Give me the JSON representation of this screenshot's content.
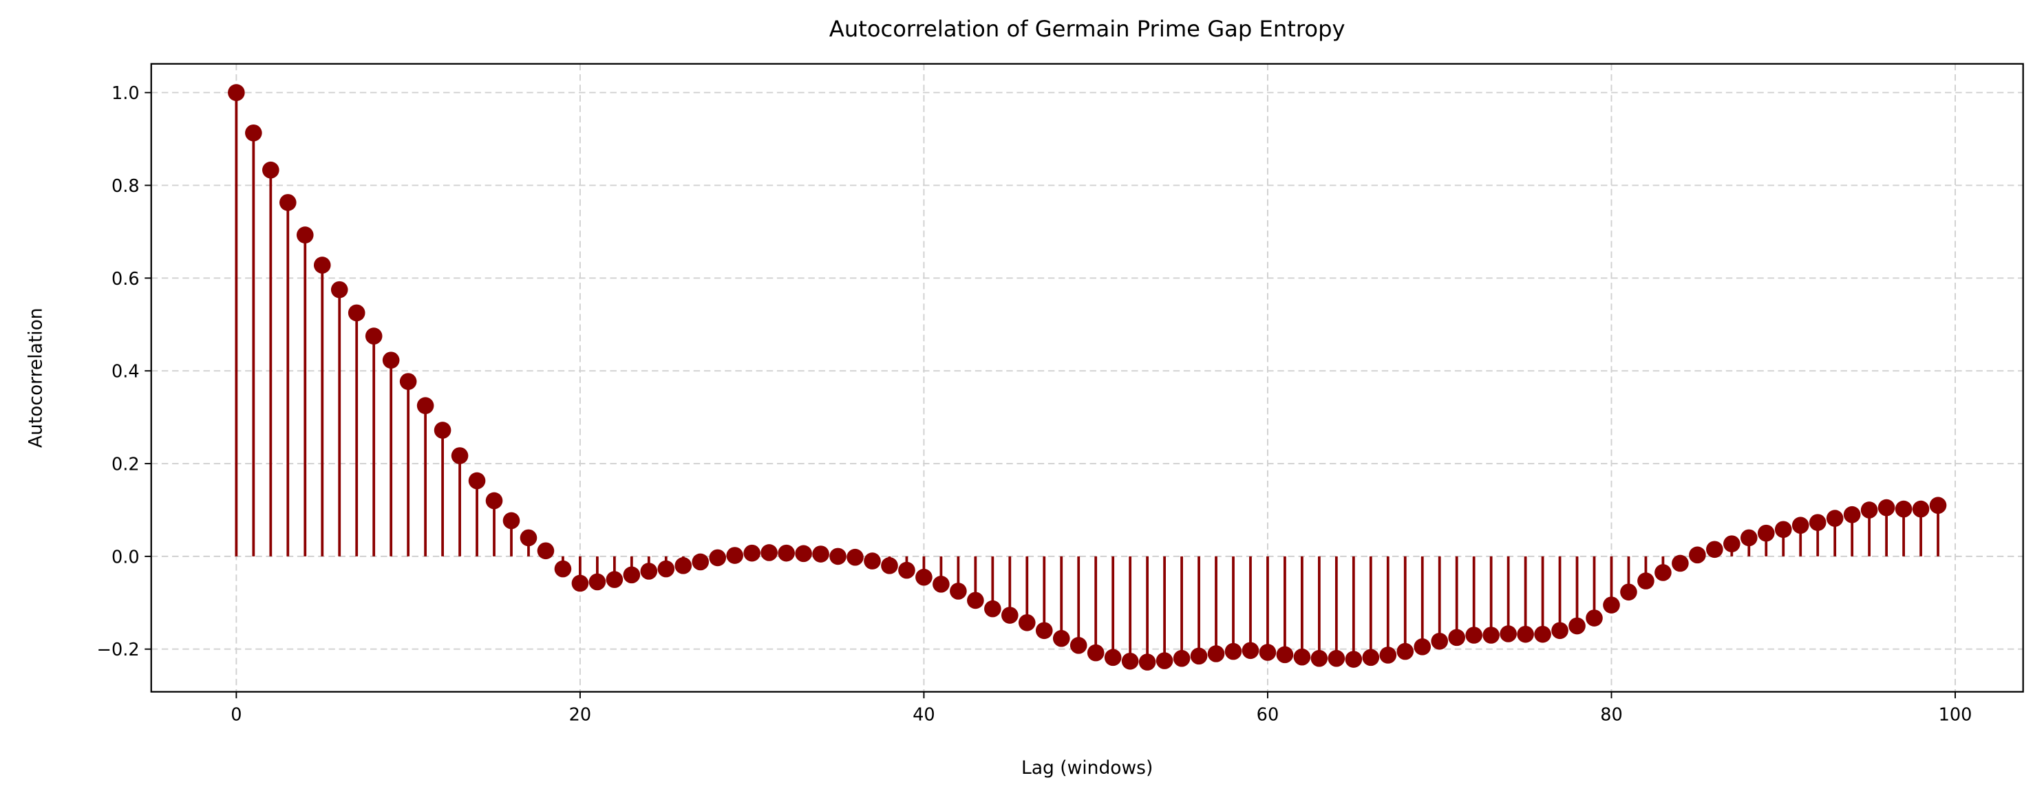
{
  "chart_data": {
    "type": "stem",
    "title": "Autocorrelation of Germain Prime Gap Entropy",
    "xlabel": "Lag (windows)",
    "ylabel": "Autocorrelation",
    "color": "#8b0000",
    "grid": true,
    "x": [
      0,
      1,
      2,
      3,
      4,
      5,
      6,
      7,
      8,
      9,
      10,
      11,
      12,
      13,
      14,
      15,
      16,
      17,
      18,
      19,
      20,
      21,
      22,
      23,
      24,
      25,
      26,
      27,
      28,
      29,
      30,
      31,
      32,
      33,
      34,
      35,
      36,
      37,
      38,
      39,
      40,
      41,
      42,
      43,
      44,
      45,
      46,
      47,
      48,
      49,
      50,
      51,
      52,
      53,
      54,
      55,
      56,
      57,
      58,
      59,
      60,
      61,
      62,
      63,
      64,
      65,
      66,
      67,
      68,
      69,
      70,
      71,
      72,
      73,
      74,
      75,
      76,
      77,
      78,
      79,
      80,
      81,
      82,
      83,
      84,
      85,
      86,
      87,
      88,
      89,
      90,
      91,
      92,
      93,
      94,
      95,
      96,
      97,
      98,
      99
    ],
    "values": [
      1.0,
      0.913,
      0.833,
      0.763,
      0.693,
      0.628,
      0.575,
      0.525,
      0.475,
      0.423,
      0.377,
      0.325,
      0.272,
      0.217,
      0.163,
      0.12,
      0.077,
      0.04,
      0.012,
      -0.027,
      -0.058,
      -0.055,
      -0.05,
      -0.04,
      -0.032,
      -0.027,
      -0.02,
      -0.012,
      -0.003,
      0.002,
      0.007,
      0.008,
      0.007,
      0.006,
      0.005,
      0.0,
      -0.002,
      -0.01,
      -0.02,
      -0.03,
      -0.045,
      -0.06,
      -0.075,
      -0.095,
      -0.113,
      -0.127,
      -0.143,
      -0.16,
      -0.177,
      -0.192,
      -0.208,
      -0.218,
      -0.226,
      -0.228,
      -0.225,
      -0.22,
      -0.215,
      -0.21,
      -0.205,
      -0.203,
      -0.207,
      -0.212,
      -0.217,
      -0.22,
      -0.22,
      -0.222,
      -0.218,
      -0.213,
      -0.205,
      -0.195,
      -0.183,
      -0.175,
      -0.17,
      -0.17,
      -0.167,
      -0.168,
      -0.168,
      -0.16,
      -0.15,
      -0.133,
      -0.105,
      -0.077,
      -0.053,
      -0.035,
      -0.015,
      0.003,
      0.015,
      0.027,
      0.04,
      0.05,
      0.058,
      0.067,
      0.073,
      0.082,
      0.09,
      0.1,
      0.105,
      0.102,
      0.102,
      0.11
    ],
    "xlim": [
      -4.95,
      103.95
    ],
    "ylim": [
      -0.292,
      1.062
    ],
    "xticks": [
      0,
      20,
      40,
      60,
      80,
      100
    ],
    "yticks": [
      {
        "value": -0.2,
        "label": "−0.2"
      },
      {
        "value": 0,
        "label": "0.0"
      },
      0.2,
      0.4,
      0.6,
      0.8,
      {
        "value": 1,
        "label": "1.0"
      }
    ]
  }
}
